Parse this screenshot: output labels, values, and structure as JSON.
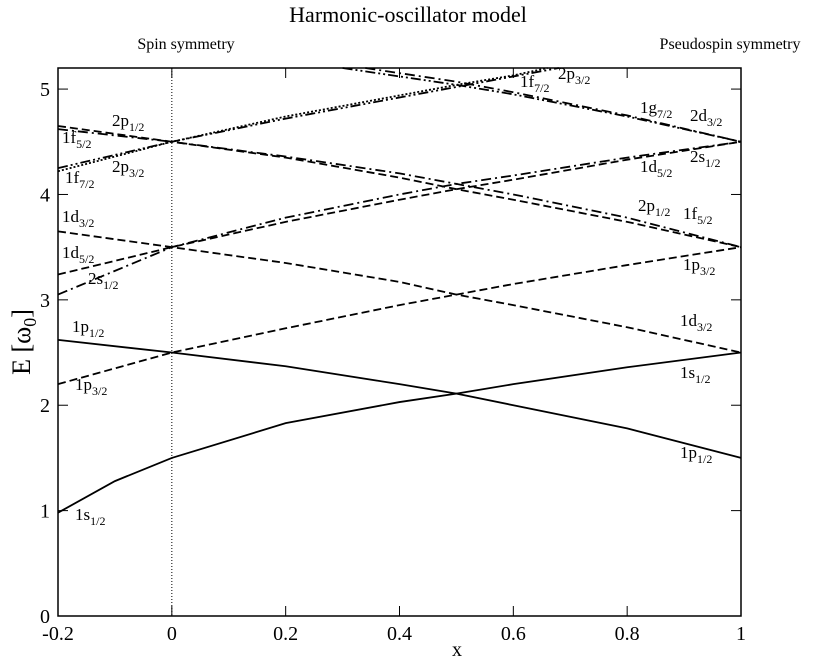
{
  "chart_data": {
    "type": "line",
    "title": "Harmonic-oscillator model",
    "annotations_top": [
      "Spin symmetry",
      "Pseudospin symmetry"
    ],
    "xlabel": "x",
    "ylabel": {
      "text": "E [ω",
      "sub": "0",
      "tail": "]"
    },
    "xlim": [
      -0.2,
      1
    ],
    "ylim": [
      0,
      5.2
    ],
    "xticks": [
      -0.2,
      0,
      0.2,
      0.4,
      0.6,
      0.8,
      1
    ],
    "yticks": [
      0,
      1,
      2,
      3,
      4,
      5
    ],
    "vline": 0,
    "series": [
      {
        "name": "1s",
        "sub": "1/2",
        "style": "solid",
        "color": "#000000",
        "x": [
          -0.2,
          -0.1,
          0,
          0.2,
          0.4,
          0.5,
          0.6,
          0.8,
          1
        ],
        "values": [
          0.98,
          1.28,
          1.5,
          1.83,
          2.03,
          2.11,
          2.2,
          2.36,
          2.5
        ]
      },
      {
        "name": "1p",
        "sub": "1/2",
        "style": "solid",
        "color": "#000000",
        "x": [
          -0.2,
          0,
          0.2,
          0.4,
          0.5,
          0.6,
          0.8,
          1
        ],
        "values": [
          2.62,
          2.5,
          2.37,
          2.2,
          2.11,
          2.0,
          1.78,
          1.5
        ]
      },
      {
        "name": "1p",
        "sub": "3/2",
        "style": "dashed",
        "color": "#000000",
        "x": [
          -0.2,
          0,
          0.2,
          0.4,
          0.5,
          0.6,
          0.8,
          1
        ],
        "values": [
          2.2,
          2.5,
          2.73,
          2.95,
          3.05,
          3.15,
          3.33,
          3.5
        ]
      },
      {
        "name": "1d",
        "sub": "3/2",
        "style": "dashed",
        "color": "#000000",
        "x": [
          -0.2,
          0,
          0.2,
          0.4,
          0.5,
          0.6,
          0.8,
          1
        ],
        "values": [
          3.65,
          3.5,
          3.35,
          3.17,
          3.05,
          2.95,
          2.74,
          2.5
        ]
      },
      {
        "name": "1d",
        "sub": "5/2",
        "style": "dashed",
        "color": "#000000",
        "x": [
          -0.2,
          0,
          0.2,
          0.4,
          0.5,
          0.6,
          0.8,
          1
        ],
        "values": [
          3.24,
          3.5,
          3.74,
          3.95,
          4.05,
          4.14,
          4.33,
          4.5
        ]
      },
      {
        "name": "1f",
        "sub": "5/2",
        "style": "dashed",
        "color": "#000000",
        "x": [
          -0.2,
          0,
          0.2,
          0.4,
          0.5,
          0.6,
          0.8,
          1
        ],
        "values": [
          4.65,
          4.5,
          4.35,
          4.16,
          4.05,
          3.95,
          3.74,
          3.5
        ]
      },
      {
        "name": "2s",
        "sub": "1/2",
        "style": "dashdot",
        "color": "#000000",
        "x": [
          -0.2,
          0,
          0.2,
          0.4,
          0.5,
          0.6,
          0.8,
          1
        ],
        "values": [
          3.05,
          3.5,
          3.78,
          4.0,
          4.1,
          4.18,
          4.35,
          4.5
        ]
      },
      {
        "name": "2p",
        "sub": "1/2",
        "style": "dashdot",
        "color": "#000000",
        "x": [
          -0.2,
          0,
          0.2,
          0.4,
          0.5,
          0.6,
          0.8,
          1
        ],
        "values": [
          4.62,
          4.5,
          4.36,
          4.2,
          4.1,
          4.0,
          3.78,
          3.5
        ]
      },
      {
        "name": "2p",
        "sub": "3/2",
        "style": "dashdotdot",
        "color": "#000000",
        "x": [
          -0.2,
          0,
          0.2,
          0.4,
          0.5,
          0.6,
          0.68
        ],
        "values": [
          4.25,
          4.5,
          4.72,
          4.92,
          5.02,
          5.12,
          5.2
        ]
      },
      {
        "name": "1f",
        "sub": "7/2",
        "style": "dotted",
        "color": "#000000",
        "x": [
          -0.2,
          0,
          0.2,
          0.4,
          0.5,
          0.6,
          0.66
        ],
        "values": [
          4.22,
          4.5,
          4.74,
          4.94,
          5.04,
          5.13,
          5.2
        ]
      },
      {
        "name": "2d",
        "sub": "3/2",
        "style": "dashdotdot",
        "color": "#000000",
        "x": [
          0.3,
          0.4,
          0.5,
          0.6,
          0.8,
          1
        ],
        "values": [
          5.2,
          5.12,
          5.04,
          4.95,
          4.74,
          4.5
        ]
      },
      {
        "name": "1g",
        "sub": "7/2",
        "style": "dashdot",
        "color": "#000000",
        "x": [
          0.34,
          0.5,
          0.6,
          0.8,
          1
        ],
        "values": [
          5.2,
          5.07,
          4.97,
          4.75,
          4.5
        ]
      }
    ],
    "level_labels": [
      {
        "text": "1f",
        "sub": "5/2"
      },
      {
        "text": "2p",
        "sub": "1/2"
      },
      {
        "text": "2p",
        "sub": "3/2"
      },
      {
        "text": "1f",
        "sub": "7/2"
      },
      {
        "text": "1d",
        "sub": "3/2"
      },
      {
        "text": "1d",
        "sub": "5/2"
      },
      {
        "text": "2s",
        "sub": "1/2"
      },
      {
        "text": "1p",
        "sub": "1/2"
      },
      {
        "text": "1p",
        "sub": "3/2"
      },
      {
        "text": "1s",
        "sub": "1/2"
      },
      {
        "text": "1f",
        "sub": "7/2"
      },
      {
        "text": "2p",
        "sub": "3/2"
      },
      {
        "text": "1g",
        "sub": "7/2"
      },
      {
        "text": "2d",
        "sub": "3/2"
      },
      {
        "text": "1d",
        "sub": "5/2"
      },
      {
        "text": "2s",
        "sub": "1/2"
      },
      {
        "text": "2p",
        "sub": "1/2"
      },
      {
        "text": "1f",
        "sub": "5/2"
      },
      {
        "text": "1p",
        "sub": "3/2"
      },
      {
        "text": "1d",
        "sub": "3/2"
      },
      {
        "text": "1s",
        "sub": "1/2"
      },
      {
        "text": "1p",
        "sub": "1/2"
      }
    ]
  }
}
